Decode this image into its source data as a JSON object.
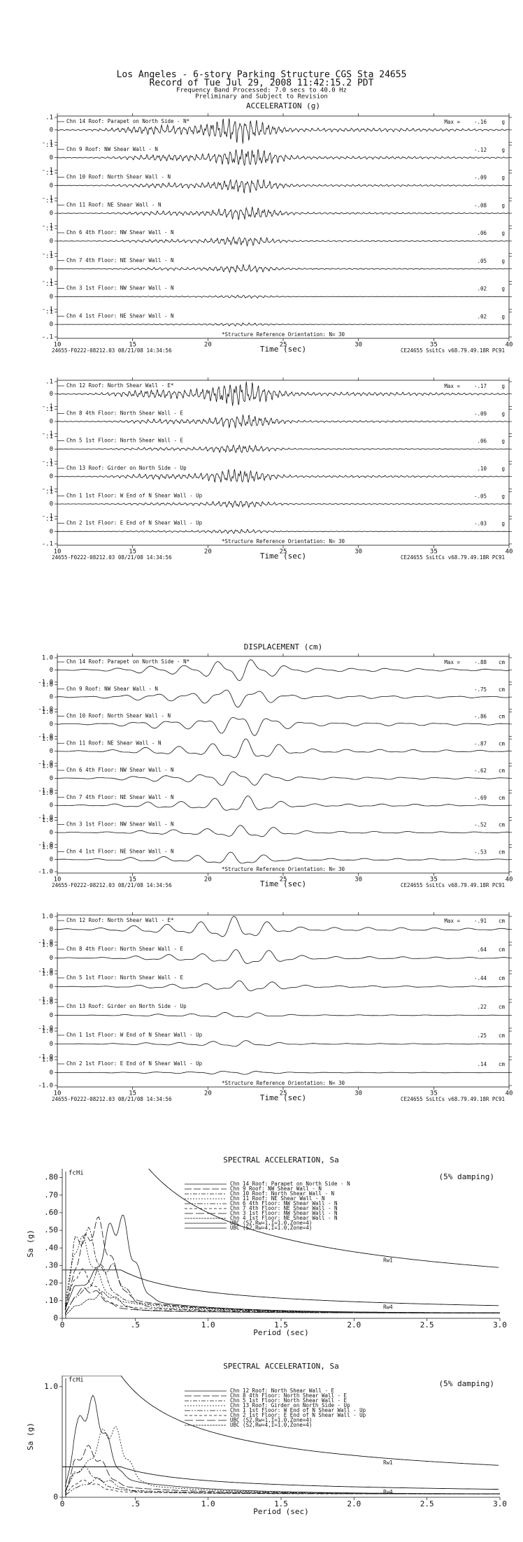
{
  "header": {
    "title": "Los Angeles - 6-story Parking Structure     CGS Sta 24655",
    "record": "Record of Tue Jul 29, 2008 11:42:15.2 PDT",
    "band": "Frequency Band Processed: 7.0 secs to 40.0 Hz",
    "status": "Preliminary and Subject to Revision"
  },
  "chart_data": [
    {
      "type": "seismogram",
      "title": "ACCELERATION (g)",
      "max_label": "Max =",
      "unit": "g",
      "channels": [
        "Chn 14  Roof: Parapet on North Side - N*",
        "Chn 9  Roof: NW Shear Wall - N",
        "Chn 10  Roof: North Shear Wall - N",
        "Chn 11  Roof: NE Shear Wall - N",
        "Chn 6  4th Floor: NW Shear Wall - N",
        "Chn 7  4th Floor: NE Shear Wall - N",
        "Chn 3  1st Floor: NW Shear Wall - N",
        "Chn 4  1st Floor: NE Shear Wall - N"
      ],
      "values": [
        -0.16,
        -0.12,
        -0.09,
        -0.08,
        0.06,
        0.05,
        0.02,
        0.02
      ],
      "value_labels": [
        "-.16",
        "-.12",
        "-.09",
        "-.08",
        ".06",
        ".05",
        ".02",
        ".02"
      ],
      "ylim": [
        -0.1,
        0.1
      ],
      "yticks": [
        {
          "value": 0.1,
          "label": ".1"
        },
        0,
        {
          "value": -0.1,
          "label": "-.1"
        }
      ],
      "xlim": [
        10,
        40
      ],
      "xticks": [
        10,
        15,
        20,
        25,
        30,
        35,
        40
      ],
      "xlabel": "Time (sec)",
      "note": "*Structure Reference Orientation: N= 30",
      "footer_left": "24655-F0222-08212.03 08/21/08 14:34:56",
      "footer_right": "CE24655  SsLtCs  v68.79.49.18R PC91"
    },
    {
      "type": "seismogram",
      "max_label": "Max =",
      "unit": "g",
      "channels": [
        "Chn 12  Roof: North Shear Wall - E*",
        "Chn 8  4th Floor: North Shear Wall - E",
        "Chn 5  1st Floor: North Shear Wall - E",
        "Chn 13  Roof: Girder on North Side - Up",
        "Chn 1  1st Floor: W End of N Shear Wall - Up",
        "Chn 2  1st Floor: E End of N Shear Wall - Up"
      ],
      "values": [
        -0.17,
        -0.09,
        0.06,
        0.1,
        -0.05,
        -0.03
      ],
      "value_labels": [
        "-.17",
        "-.09",
        ".06",
        ".10",
        "-.05",
        "-.03"
      ],
      "ylim": [
        -0.1,
        0.1
      ],
      "yticks": [
        {
          "value": 0.1,
          "label": ".1"
        },
        0,
        {
          "value": -0.1,
          "label": "-.1"
        }
      ],
      "xlim": [
        10,
        40
      ],
      "xticks": [
        10,
        15,
        20,
        25,
        30,
        35,
        40
      ],
      "xlabel": "Time (sec)",
      "note": "*Structure Reference Orientation: N= 30",
      "footer_left": "24655-F0222-08212.03 08/21/08 14:34:56",
      "footer_right": "CE24655  SsLtCs  v68.79.49.18R PC91"
    },
    {
      "type": "seismogram",
      "title": "DISPLACEMENT (cm)",
      "max_label": "Max =",
      "unit": "cm",
      "channels": [
        "Chn 14  Roof: Parapet on North Side - N*",
        "Chn 9  Roof: NW Shear Wall - N",
        "Chn 10  Roof: North Shear Wall - N",
        "Chn 11  Roof: NE Shear Wall - N",
        "Chn 6  4th Floor: NW Shear Wall - N",
        "Chn 7  4th Floor: NE Shear Wall - N",
        "Chn 3  1st Floor: NW Shear Wall - N",
        "Chn 4  1st Floor: NE Shear Wall - N"
      ],
      "values": [
        -0.88,
        -0.75,
        -0.86,
        -0.87,
        -0.62,
        -0.69,
        -0.52,
        -0.53
      ],
      "value_labels": [
        "-.88",
        "-.75",
        "-.86",
        "-.87",
        "-.62",
        "-.69",
        "-.52",
        "-.53"
      ],
      "ylim": [
        -1.0,
        1.0
      ],
      "yticks": [
        {
          "value": 1.0,
          "label": "1.0"
        },
        0,
        {
          "value": -1.0,
          "label": "-1.0"
        }
      ],
      "xlim": [
        10,
        40
      ],
      "xticks": [
        10,
        15,
        20,
        25,
        30,
        35,
        40
      ],
      "xlabel": "Time (sec)",
      "note": "*Structure Reference Orientation: N= 30",
      "footer_left": "24655-F0222-08212.03 08/21/08 14:34:56",
      "footer_right": "CE24655  SsLtCs  v68.79.49.18R PC91"
    },
    {
      "type": "seismogram",
      "max_label": "Max =",
      "unit": "cm",
      "channels": [
        "Chn 12  Roof: North Shear Wall - E*",
        "Chn 8  4th Floor: North Shear Wall - E",
        "Chn 5  1st Floor: North Shear Wall - E",
        "Chn 13  Roof: Girder on North Side - Up",
        "Chn 1  1st Floor: W End of N Shear Wall - Up",
        "Chn 2  1st Floor: E End of N Shear Wall - Up"
      ],
      "values": [
        -0.91,
        0.64,
        -0.44,
        0.22,
        0.25,
        0.14
      ],
      "value_labels": [
        "-.91",
        ".64",
        "-.44",
        ".22",
        ".25",
        ".14"
      ],
      "ylim": [
        -1.0,
        1.0
      ],
      "yticks": [
        {
          "value": 1.0,
          "label": "1.0"
        },
        0,
        {
          "value": -1.0,
          "label": "-1.0"
        }
      ],
      "xlim": [
        10,
        40
      ],
      "xticks": [
        10,
        15,
        20,
        25,
        30,
        35,
        40
      ],
      "xlabel": "Time (sec)",
      "note": "*Structure Reference Orientation: N= 30",
      "footer_left": "24655-F0222-08212.03 08/21/08 14:34:56",
      "footer_right": "CE24655  SsLtCs  v68.79.49.18R PC91"
    },
    {
      "type": "spectrum",
      "title": "SPECTRAL ACCELERATION, Sa",
      "damping": "(5% damping)",
      "marker": "fcHi",
      "ylabel": "Sa (g)",
      "xlabel": "Period (sec)",
      "legend": [
        "Chn 14  Roof: Parapet on North Side - N",
        "Chn 9  Roof: NW Shear Wall - N",
        "Chn 10  Roof: North Shear Wall - N",
        "Chn 11  Roof: NE Shear Wall - N",
        "Chn 6  4th Floor: NW Shear Wall - N",
        "Chn 7  4th Floor: NE Shear Wall - N",
        "Chn 3  1st Floor: NW Shear Wall - N",
        "Chn 4  1st Floor: NE Shear Wall - N",
        "UBC (S2,Rw=1,I=1.0,Zone=4)",
        "UBC (S2,Rw=4,I=1.0,Zone=4)"
      ],
      "curve_labels": [
        "Rw1",
        "Rw4"
      ],
      "xlim": [
        0,
        3.0
      ],
      "xticks": [
        0,
        {
          "value": 0.5,
          "label": ".5"
        },
        {
          "value": 1.0,
          "label": "1.0"
        },
        1.5,
        {
          "value": 2.0,
          "label": "2.0"
        },
        2.5,
        {
          "value": 3.0,
          "label": "3.0"
        }
      ],
      "ylim": [
        0,
        0.85
      ],
      "yticks": [
        0,
        {
          "value": 0.1,
          "label": ".10"
        },
        {
          "value": 0.2,
          "label": ".20"
        },
        {
          "value": 0.3,
          "label": ".30"
        },
        {
          "value": 0.4,
          "label": ".40"
        },
        {
          "value": 0.5,
          "label": ".50"
        },
        {
          "value": 0.6,
          "label": ".60"
        },
        {
          "value": 0.7,
          "label": ".70"
        },
        {
          "value": 0.8,
          "label": ".80"
        }
      ]
    },
    {
      "type": "spectrum",
      "title": "SPECTRAL ACCELERATION, Sa",
      "damping": "(5% damping)",
      "marker": "fcHi",
      "ylabel": "Sa (g)",
      "xlabel": "Period (sec)",
      "legend": [
        "Chn 12  Roof: North Shear Wall - E",
        "Chn 8  4th Floor: North Shear Wall - E",
        "Chn 5  1st Floor: North Shear Wall - E",
        "Chn 13  Roof: Girder on North Side - Up",
        "Chn 1  1st Floor: W End of N Shear Wall - Up",
        "Chn 2  1st Floor: E End of N Shear Wall - Up",
        "UBC (S2,Rw=1,I=1.0,Zone=4)",
        "UBC (S2,Rw=4,I=1.0,Zone=4)"
      ],
      "curve_labels": [
        "Rw1",
        "Rw4"
      ],
      "xlim": [
        0,
        3.0
      ],
      "xticks": [
        0,
        {
          "value": 0.5,
          "label": ".5"
        },
        {
          "value": 1.0,
          "label": "1.0"
        },
        1.5,
        {
          "value": 2.0,
          "label": "2.0"
        },
        2.5,
        {
          "value": 3.0,
          "label": "3.0"
        }
      ],
      "ylim": [
        0,
        1.1
      ],
      "yticks": [
        0,
        {
          "value": 1.0,
          "label": "1.0"
        }
      ]
    }
  ]
}
